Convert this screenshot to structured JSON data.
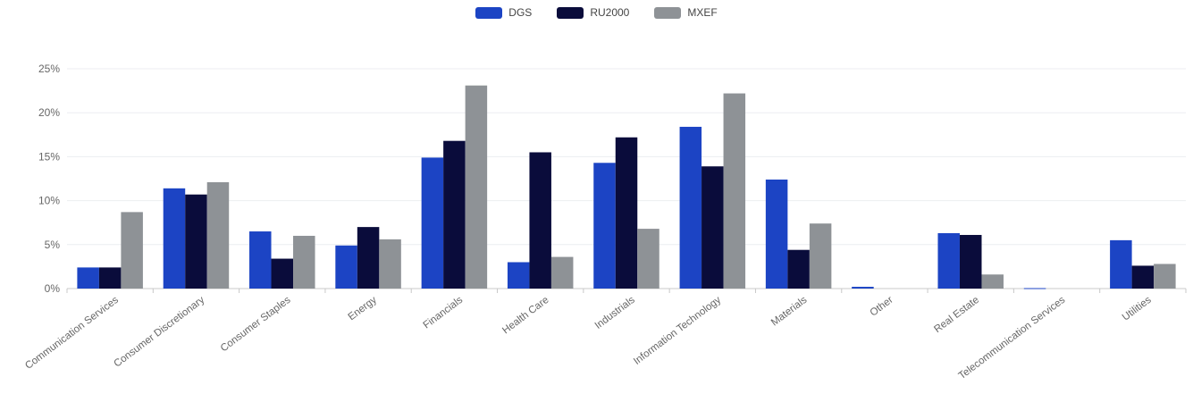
{
  "chart_data": {
    "type": "bar",
    "categories": [
      "Communication Services",
      "Consumer Discretionary",
      "Consumer Staples",
      "Energy",
      "Financials",
      "Health Care",
      "Industrials",
      "Information Technology",
      "Materials",
      "Other",
      "Real Estate",
      "Telecommunication Services",
      "Utilities"
    ],
    "series": [
      {
        "name": "DGS",
        "color": "#1c44c4",
        "values": [
          2.4,
          11.4,
          6.5,
          4.9,
          14.9,
          3.0,
          14.3,
          18.4,
          12.4,
          0.2,
          6.3,
          0.05,
          5.5
        ]
      },
      {
        "name": "RU2000",
        "color": "#0a0c3b",
        "values": [
          2.4,
          10.7,
          3.4,
          7.0,
          16.8,
          15.5,
          17.2,
          13.9,
          4.4,
          0,
          6.1,
          0,
          2.6
        ]
      },
      {
        "name": "MXEF",
        "color": "#8e9296",
        "values": [
          8.7,
          12.1,
          6.0,
          5.6,
          23.1,
          3.6,
          6.8,
          22.2,
          7.4,
          0,
          1.6,
          0,
          2.8
        ]
      }
    ],
    "ylim": [
      0,
      25
    ],
    "yticks": [
      "0%",
      "5%",
      "10%",
      "15%",
      "20%",
      "25%"
    ],
    "legend_position": "top-center",
    "grid": true
  }
}
